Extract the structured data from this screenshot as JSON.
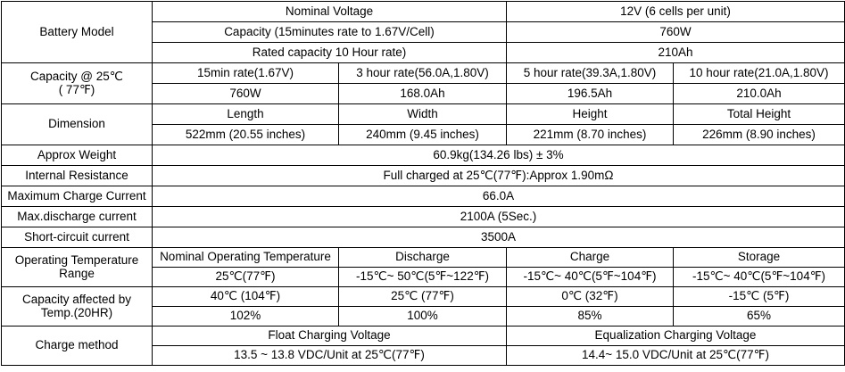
{
  "battery_model": {
    "label": "Battery Model",
    "rows": [
      {
        "name": "Nominal Voltage",
        "value": "12V (6 cells per unit)"
      },
      {
        "name": "Capacity (15minutes rate to 1.67V/Cell)",
        "value": "760W"
      },
      {
        "name": "Rated capacity 10 Hour rate)",
        "value": "210Ah"
      }
    ]
  },
  "capacity_25c": {
    "label_line1": "Capacity @ 25℃",
    "label_line2": "( 77℉)",
    "headers": [
      "15min rate(1.67V)",
      "3 hour rate(56.0A,1.80V)",
      "5 hour rate(39.3A,1.80V)",
      "10 hour rate(21.0A,1.80V)"
    ],
    "values": [
      "760W",
      "168.0Ah",
      "196.5Ah",
      "210.0Ah"
    ]
  },
  "dimension": {
    "label": "Dimension",
    "headers": [
      "Length",
      "Width",
      "Height",
      "Total Height"
    ],
    "values": [
      "522mm (20.55 inches)",
      "240mm (9.45 inches)",
      "221mm (8.70 inches)",
      "226mm (8.90 inches)"
    ]
  },
  "approx_weight": {
    "label": "Approx Weight",
    "value": "60.9kg(134.26 lbs) ± 3%"
  },
  "internal_resistance": {
    "label": "Internal Resistance",
    "value": "Full charged at 25℃(77℉):Approx 1.90mΩ"
  },
  "max_charge_current": {
    "label": "Maximum Charge Current",
    "value": "66.0A"
  },
  "max_discharge_current": {
    "label": "Max.discharge current",
    "value": "2100A (5Sec.)"
  },
  "short_circuit_current": {
    "label": "Short-circuit current",
    "value": "3500A"
  },
  "operating_temp": {
    "label_line1": "Operating Temperature",
    "label_line2": "Range",
    "headers": [
      "Nominal Operating Temperature",
      "Discharge",
      "Charge",
      "Storage"
    ],
    "values": [
      "25℃(77℉)",
      "-15℃~ 50℃(5℉~122℉)",
      "-15℃~ 40℃(5℉~104℉)",
      "-15℃~ 40℃(5℉~104℉)"
    ]
  },
  "capacity_temp": {
    "label_line1": "Capacity affected by",
    "label_line2": "Temp.(20HR)",
    "temps": [
      "40℃ (104℉)",
      "25℃ (77℉)",
      "0℃ (32℉)",
      "-15℃ (5℉)"
    ],
    "percents": [
      "102%",
      "100%",
      "85%",
      "65%"
    ]
  },
  "charge_method": {
    "label": "Charge method",
    "headers": [
      "Float Charging Voltage",
      "Equalization Charging Voltage"
    ],
    "values": [
      "13.5 ~ 13.8 VDC/Unit at 25℃(77℉)",
      "14.4~ 15.0 VDC/Unit at 25℃(77℉)"
    ]
  }
}
